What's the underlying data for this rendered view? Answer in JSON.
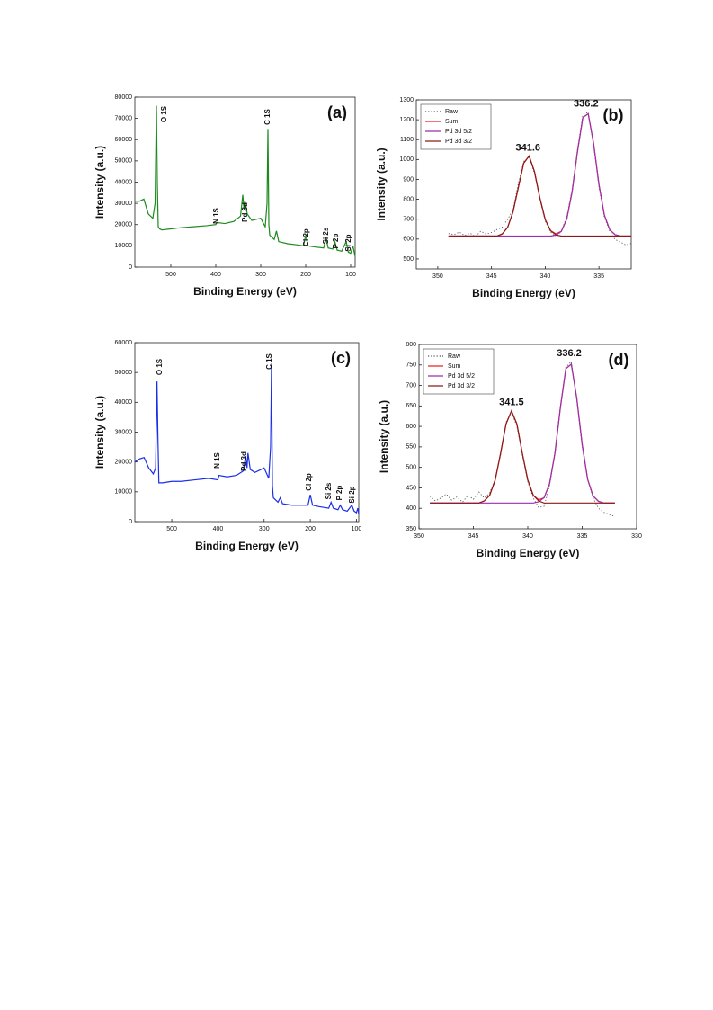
{
  "chart_data": [
    {
      "type": "line",
      "panel_label": "(a)",
      "x_label": "Binding Energy (eV)",
      "y_label": "Intensity (a.u.)",
      "xlim": [
        580,
        90
      ],
      "xticks": [
        500,
        400,
        300,
        200,
        100
      ],
      "ylim": [
        0,
        80000
      ],
      "yticks": [
        0,
        10000,
        20000,
        30000,
        40000,
        50000,
        60000,
        70000,
        80000
      ],
      "annotations": [
        "O 1S",
        "N 1S",
        "Pd 3d",
        "C 1S",
        "Cl 2p",
        "Si 2s",
        "P 2p",
        "Si 2p"
      ],
      "x": [
        580,
        570,
        560,
        550,
        540,
        535,
        532,
        530,
        528,
        525,
        520,
        500,
        480,
        450,
        420,
        400,
        398,
        380,
        360,
        345,
        340,
        337,
        335,
        330,
        320,
        300,
        290,
        286,
        284,
        282,
        280,
        270,
        265,
        260,
        240,
        220,
        205,
        200,
        195,
        180,
        160,
        155,
        150,
        140,
        135,
        130,
        120,
        110,
        105,
        100,
        95,
        90
      ],
      "series": [
        {
          "name": "Survey",
          "color": "#1e8a1e",
          "values": [
            31000,
            31000,
            32000,
            25000,
            23000,
            30000,
            76000,
            40000,
            19000,
            18000,
            17500,
            18000,
            18500,
            19000,
            19500,
            20000,
            21000,
            20500,
            21500,
            24000,
            34000,
            27000,
            31000,
            25000,
            22000,
            23000,
            19000,
            30000,
            65000,
            20000,
            15000,
            13000,
            17000,
            12000,
            11000,
            10500,
            10000,
            15000,
            10000,
            9500,
            9000,
            14000,
            9000,
            8500,
            12000,
            8000,
            7500,
            12000,
            7000,
            6500,
            10000,
            5000
          ]
        }
      ]
    },
    {
      "type": "line",
      "panel_label": "(b)",
      "x_label": "Binding Energy (eV)",
      "y_label": "Intensity (a.u.)",
      "legend": "upper left",
      "xlim": [
        352,
        332
      ],
      "xticks": [
        350,
        345,
        340,
        335
      ],
      "ylim": [
        450,
        1300
      ],
      "yticks": [
        500,
        600,
        700,
        800,
        900,
        1000,
        1100,
        1200,
        1300
      ],
      "peak_labels": [
        341.6,
        336.2
      ],
      "x": [
        349,
        348.5,
        348,
        347.5,
        347,
        346.5,
        346,
        345.5,
        345,
        344.5,
        344,
        343.5,
        343,
        342.5,
        342,
        341.5,
        341,
        340.5,
        340,
        339.5,
        339,
        338.5,
        338,
        337.5,
        337,
        336.5,
        336,
        335.5,
        335,
        334.5,
        334,
        333.5,
        333,
        332.5,
        332
      ],
      "series": [
        {
          "name": "Raw",
          "color": "#555555",
          "dash": "dotted",
          "values": [
            628,
            622,
            635,
            618,
            630,
            612,
            640,
            625,
            633,
            648,
            660,
            700,
            745,
            880,
            990,
            1012,
            930,
            800,
            690,
            635,
            610,
            640,
            712,
            850,
            1050,
            1225,
            1238,
            1070,
            860,
            710,
            640,
            598,
            585,
            570,
            578
          ]
        },
        {
          "name": "Sum",
          "color": "#e8261c",
          "values": [
            615,
            615,
            615,
            615,
            615,
            615,
            615,
            615,
            615,
            615,
            626,
            659,
            736,
            860,
            982,
            1018,
            939,
            807,
            698,
            642,
            626,
            639,
            700,
            837,
            1040,
            1211,
            1230,
            1081,
            874,
            721,
            647,
            622,
            615,
            615,
            615
          ]
        },
        {
          "name": "Pd 3d 5/2",
          "color": "#9b2fae",
          "values": [
            615,
            615,
            615,
            615,
            615,
            615,
            615,
            615,
            615,
            615,
            615,
            615,
            615,
            615,
            615,
            615,
            615,
            615,
            615,
            615,
            620,
            639,
            700,
            837,
            1040,
            1211,
            1230,
            1081,
            874,
            721,
            647,
            622,
            615,
            615,
            615
          ]
        },
        {
          "name": "Pd 3d 3/2",
          "color": "#8b1a1a",
          "values": [
            615,
            615,
            615,
            615,
            615,
            615,
            615,
            615,
            615,
            615,
            626,
            659,
            736,
            860,
            982,
            1018,
            939,
            807,
            698,
            642,
            621,
            615,
            615,
            615,
            615,
            615,
            615,
            615,
            615,
            615,
            615,
            615,
            615,
            615,
            615
          ]
        }
      ]
    },
    {
      "type": "line",
      "panel_label": "(c)",
      "x_label": "Binding Energy (eV)",
      "y_label": "Intensity (a.u.)",
      "xlim": [
        580,
        95
      ],
      "xticks": [
        500,
        400,
        300,
        200,
        100
      ],
      "ylim": [
        0,
        60000
      ],
      "yticks": [
        0,
        10000,
        20000,
        30000,
        40000,
        50000,
        60000
      ],
      "annotations": [
        "O 1S",
        "N 1S",
        "Pd 3d",
        "C 1S",
        "Cl 2p",
        "Si 2s",
        "P 2p",
        "Si 2p"
      ],
      "x": [
        580,
        570,
        560,
        550,
        540,
        535,
        532,
        530,
        528,
        525,
        520,
        500,
        480,
        450,
        420,
        400,
        398,
        380,
        360,
        345,
        340,
        337,
        335,
        330,
        320,
        300,
        290,
        286,
        284,
        282,
        280,
        270,
        265,
        260,
        240,
        220,
        205,
        200,
        195,
        180,
        160,
        155,
        150,
        140,
        135,
        130,
        120,
        110,
        105,
        100,
        97,
        95
      ],
      "series": [
        {
          "name": "Survey",
          "color": "#1a2ee8",
          "values": [
            20000,
            21000,
            21500,
            18000,
            16000,
            18000,
            47000,
            28000,
            13000,
            13000,
            13000,
            13500,
            13500,
            14000,
            14500,
            14000,
            15500,
            15000,
            15500,
            17000,
            22000,
            18000,
            23000,
            17500,
            16500,
            18000,
            14500,
            25000,
            53000,
            12000,
            8000,
            6500,
            8000,
            6000,
            5500,
            5500,
            5500,
            9000,
            5500,
            5000,
            4500,
            6500,
            4500,
            4000,
            5500,
            4000,
            3500,
            5500,
            3500,
            3000,
            4500,
            2500
          ]
        }
      ]
    },
    {
      "type": "line",
      "panel_label": "(d)",
      "x_label": "Binding Energy (eV)",
      "y_label": "Intensity (a.u.)",
      "legend": "upper left",
      "xlim": [
        350,
        330
      ],
      "xticks": [
        350,
        345,
        340,
        335,
        330
      ],
      "ylim": [
        350,
        800
      ],
      "yticks": [
        350,
        400,
        450,
        500,
        550,
        600,
        650,
        700,
        750,
        800
      ],
      "peak_labels": [
        341.5,
        336.2
      ],
      "x": [
        349,
        348.5,
        348,
        347.5,
        347,
        346.5,
        346,
        345.5,
        345,
        344.5,
        344,
        343.5,
        343,
        342.5,
        342,
        341.5,
        341,
        340.5,
        340,
        339.5,
        339,
        338.5,
        338,
        337.5,
        337,
        336.5,
        336,
        335.5,
        335,
        334.5,
        334,
        333.5,
        333,
        332.5,
        332
      ],
      "series": [
        {
          "name": "Raw",
          "color": "#555555",
          "dash": "dotted",
          "values": [
            430,
            418,
            425,
            435,
            420,
            428,
            415,
            432,
            422,
            440,
            425,
            438,
            470,
            530,
            610,
            635,
            600,
            530,
            465,
            425,
            402,
            405,
            455,
            540,
            650,
            745,
            758,
            665,
            550,
            470,
            425,
            400,
            390,
            385,
            380
          ]
        },
        {
          "name": "Sum",
          "color": "#e8261c",
          "values": [
            413,
            413,
            413,
            413,
            413,
            413,
            413,
            413,
            413,
            413,
            418,
            432,
            469,
            534,
            606,
            638,
            606,
            534,
            469,
            432,
            421,
            426,
            460,
            535,
            647,
            741,
            752,
            669,
            556,
            471,
            430,
            417,
            413,
            413,
            413
          ]
        },
        {
          "name": "Pd 3d 5/2",
          "color": "#9b2fae",
          "values": [
            413,
            413,
            413,
            413,
            413,
            413,
            413,
            413,
            413,
            413,
            413,
            413,
            413,
            413,
            413,
            413,
            413,
            413,
            413,
            413,
            416,
            426,
            460,
            535,
            647,
            741,
            752,
            669,
            556,
            471,
            430,
            417,
            413,
            413,
            413
          ]
        },
        {
          "name": "Pd 3d 3/2",
          "color": "#8b1a1a",
          "values": [
            413,
            413,
            413,
            413,
            413,
            413,
            413,
            413,
            413,
            413,
            418,
            432,
            469,
            534,
            606,
            638,
            606,
            534,
            469,
            432,
            418,
            413,
            413,
            413,
            413,
            413,
            413,
            413,
            413,
            413,
            413,
            413,
            413,
            413,
            413
          ]
        }
      ]
    }
  ]
}
